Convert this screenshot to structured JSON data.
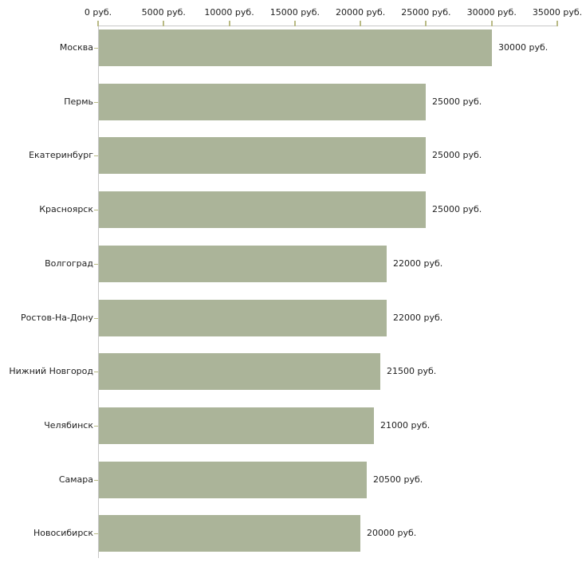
{
  "chart_data": {
    "type": "bar",
    "orientation": "horizontal",
    "title": "",
    "xlabel": "",
    "ylabel": "",
    "unit": "руб.",
    "categories": [
      "Москва",
      "Пермь",
      "Екатеринбург",
      "Красноярск",
      "Волгоград",
      "Ростов-На-Дону",
      "Нижний Новгород",
      "Челябинск",
      "Самара",
      "Новосибирск"
    ],
    "values": [
      30000,
      25000,
      25000,
      25000,
      22000,
      22000,
      21500,
      21000,
      20500,
      20000
    ],
    "value_labels": [
      "30000 руб.",
      "25000 руб.",
      "25000 руб.",
      "25000 руб.",
      "22000 руб.",
      "22000 руб.",
      "21500 руб.",
      "21000 руб.",
      "20500 руб.",
      "20000 руб."
    ],
    "xlim": [
      0,
      35000
    ],
    "x_ticks": [
      0,
      5000,
      10000,
      15000,
      20000,
      25000,
      30000,
      35000
    ],
    "x_tick_labels": [
      "0 руб.",
      "5000 руб.",
      "10000 руб.",
      "15000 руб.",
      "20000 руб.",
      "25000 руб.",
      "30000 руб.",
      "35000 руб."
    ],
    "grid": false,
    "legend": false,
    "axis_position": "top"
  },
  "colors": {
    "bar": "#abb499",
    "axis_line": "#c8c8c8",
    "tick": "#b9ba85",
    "text": "#1f1f1f",
    "background": "#ffffff"
  }
}
